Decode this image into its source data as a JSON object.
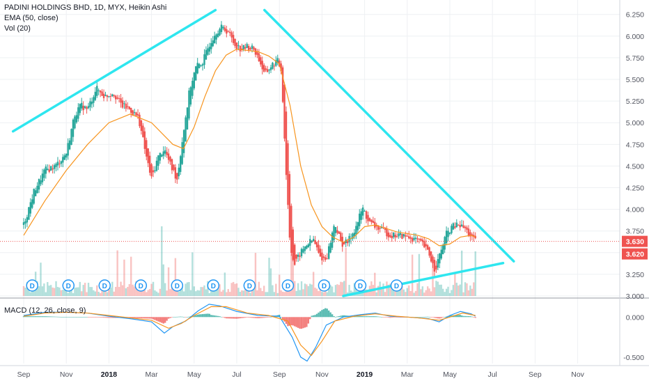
{
  "legend": {
    "title": "PADINI HOLDINGS BHD, 1D, MYX, Heikin Ashi",
    "ema": "EMA (50, close)",
    "vol": "Vol (20)",
    "macd": "MACD (12, 26, close, 9)"
  },
  "colors": {
    "up": "#26a69a",
    "down": "#ef5350",
    "ema": "#f7941d",
    "trendline": "#2ee6ef",
    "macd_line": "#2196f3",
    "signal_line": "#f7941d",
    "grid": "#eef0f3",
    "axis_text": "#50535e",
    "last_line": "#ef5350",
    "badge_ring": "#2196f3"
  },
  "chart_data": [
    {
      "type": "candlestick",
      "style": "Heikin Ashi",
      "x_tick_labels": [
        "Sep",
        "Nov",
        "2018",
        "Mar",
        "May",
        "Jul",
        "Sep",
        "Nov",
        "2019",
        "Mar",
        "May",
        "Jul",
        "Sep",
        "Nov"
      ],
      "y_tick_labels": [
        "6.250",
        "6.000",
        "5.750",
        "5.500",
        "5.250",
        "5.000",
        "4.750",
        "4.500",
        "4.250",
        "4.000",
        "3.750",
        "3.500",
        "3.250",
        "3.000"
      ],
      "ylim": [
        3.0,
        6.28
      ],
      "grid": true,
      "price_labels": [
        "3.630",
        "3.620"
      ],
      "last_price": 3.63,
      "dividend_badge": "D",
      "dividends_month_index": [
        0.4,
        2.1,
        3.8,
        5.5,
        7.2,
        8.9,
        10.6,
        12.4,
        14.1,
        15.8,
        17.5
      ],
      "close_series": [
        [
          0.0,
          3.82
        ],
        [
          0.5,
          4.22
        ],
        [
          1.0,
          4.45
        ],
        [
          1.5,
          4.5
        ],
        [
          2.0,
          4.65
        ],
        [
          2.4,
          5.1
        ],
        [
          2.7,
          5.2
        ],
        [
          3.0,
          5.15
        ],
        [
          3.4,
          5.4
        ],
        [
          3.8,
          5.3
        ],
        [
          4.2,
          5.35
        ],
        [
          4.6,
          5.2
        ],
        [
          5.0,
          5.15
        ],
        [
          5.4,
          5.05
        ],
        [
          5.8,
          4.55
        ],
        [
          6.0,
          4.35
        ],
        [
          6.3,
          4.6
        ],
        [
          6.6,
          4.7
        ],
        [
          6.9,
          4.5
        ],
        [
          7.2,
          4.35
        ],
        [
          7.5,
          4.9
        ],
        [
          7.8,
          5.4
        ],
        [
          8.1,
          5.65
        ],
        [
          8.4,
          5.7
        ],
        [
          8.7,
          5.9
        ],
        [
          9.0,
          6.05
        ],
        [
          9.3,
          6.1
        ],
        [
          9.6,
          6.05
        ],
        [
          9.9,
          5.9
        ],
        [
          10.2,
          5.85
        ],
        [
          10.5,
          5.88
        ],
        [
          10.8,
          5.85
        ],
        [
          11.1,
          5.7
        ],
        [
          11.3,
          5.55
        ],
        [
          11.6,
          5.65
        ],
        [
          11.9,
          5.72
        ],
        [
          12.1,
          5.6
        ],
        [
          12.3,
          4.5
        ],
        [
          12.5,
          3.6
        ],
        [
          12.7,
          3.35
        ],
        [
          13.0,
          3.5
        ],
        [
          13.3,
          3.6
        ],
        [
          13.6,
          3.65
        ],
        [
          13.9,
          3.45
        ],
        [
          14.2,
          3.42
        ],
        [
          14.6,
          3.85
        ],
        [
          14.9,
          3.6
        ],
        [
          15.2,
          3.62
        ],
        [
          15.6,
          3.8
        ],
        [
          15.9,
          4.02
        ],
        [
          16.2,
          3.85
        ],
        [
          16.5,
          3.8
        ],
        [
          16.9,
          3.75
        ],
        [
          17.2,
          3.7
        ],
        [
          17.6,
          3.7
        ],
        [
          18.0,
          3.68
        ],
        [
          18.4,
          3.65
        ],
        [
          18.7,
          3.6
        ],
        [
          19.0,
          3.5
        ],
        [
          19.3,
          3.3
        ],
        [
          19.5,
          3.45
        ],
        [
          19.8,
          3.7
        ],
        [
          20.1,
          3.8
        ],
        [
          20.4,
          3.82
        ],
        [
          20.7,
          3.78
        ],
        [
          21.0,
          3.68
        ],
        [
          21.2,
          3.63
        ]
      ],
      "ema_series": [
        [
          0.0,
          3.7
        ],
        [
          1.0,
          4.1
        ],
        [
          2.0,
          4.45
        ],
        [
          3.0,
          4.75
        ],
        [
          4.0,
          5.0
        ],
        [
          5.0,
          5.1
        ],
        [
          6.0,
          5.0
        ],
        [
          7.0,
          4.75
        ],
        [
          7.5,
          4.7
        ],
        [
          8.0,
          4.95
        ],
        [
          8.5,
          5.3
        ],
        [
          9.0,
          5.6
        ],
        [
          9.5,
          5.78
        ],
        [
          10.0,
          5.85
        ],
        [
          11.0,
          5.82
        ],
        [
          11.5,
          5.77
        ],
        [
          12.0,
          5.68
        ],
        [
          12.5,
          5.2
        ],
        [
          13.0,
          4.5
        ],
        [
          13.5,
          4.05
        ],
        [
          14.0,
          3.8
        ],
        [
          14.5,
          3.68
        ],
        [
          15.0,
          3.62
        ],
        [
          15.5,
          3.68
        ],
        [
          16.0,
          3.8
        ],
        [
          16.5,
          3.82
        ],
        [
          17.0,
          3.78
        ],
        [
          17.5,
          3.74
        ],
        [
          18.0,
          3.72
        ],
        [
          18.5,
          3.7
        ],
        [
          19.0,
          3.66
        ],
        [
          19.5,
          3.58
        ],
        [
          20.0,
          3.6
        ],
        [
          20.5,
          3.68
        ],
        [
          21.0,
          3.7
        ],
        [
          21.2,
          3.68
        ]
      ],
      "trendlines": [
        {
          "from": [
            -0.5,
            4.9
          ],
          "to": [
            9.0,
            6.3
          ]
        },
        {
          "from": [
            11.3,
            6.3
          ],
          "to": [
            23.0,
            3.4
          ]
        },
        {
          "from": [
            15.0,
            3.0
          ],
          "to": [
            22.5,
            3.38
          ]
        }
      ]
    },
    {
      "type": "line",
      "label": "MACD (12, 26, close, 9)",
      "y_tick_labels": [
        "0.000",
        "-0.500"
      ],
      "ylim": [
        -0.58,
        0.22
      ],
      "macd": [
        [
          0.0,
          0.02
        ],
        [
          1.0,
          0.06
        ],
        [
          2.0,
          0.06
        ],
        [
          3.0,
          0.05
        ],
        [
          4.0,
          0.01
        ],
        [
          5.0,
          -0.02
        ],
        [
          6.0,
          -0.06
        ],
        [
          6.6,
          -0.2
        ],
        [
          7.0,
          -0.12
        ],
        [
          7.6,
          -0.05
        ],
        [
          8.2,
          0.08
        ],
        [
          8.7,
          0.16
        ],
        [
          9.2,
          0.14
        ],
        [
          10.0,
          0.07
        ],
        [
          11.0,
          0.02
        ],
        [
          12.0,
          0.01
        ],
        [
          12.6,
          -0.25
        ],
        [
          13.0,
          -0.5
        ],
        [
          13.3,
          -0.55
        ],
        [
          13.7,
          -0.38
        ],
        [
          14.2,
          -0.1
        ],
        [
          15.0,
          0.0
        ],
        [
          15.8,
          0.03
        ],
        [
          16.5,
          0.05
        ],
        [
          17.2,
          0.01
        ],
        [
          18.0,
          0.0
        ],
        [
          19.0,
          -0.02
        ],
        [
          19.5,
          -0.06
        ],
        [
          20.0,
          0.02
        ],
        [
          20.5,
          0.07
        ],
        [
          21.0,
          0.04
        ],
        [
          21.2,
          0.01
        ]
      ],
      "signal": [
        [
          0.0,
          0.01
        ],
        [
          1.0,
          0.05
        ],
        [
          2.0,
          0.06
        ],
        [
          3.0,
          0.05
        ],
        [
          4.0,
          0.02
        ],
        [
          5.0,
          -0.01
        ],
        [
          6.0,
          -0.04
        ],
        [
          6.8,
          -0.14
        ],
        [
          7.4,
          -0.08
        ],
        [
          8.0,
          0.02
        ],
        [
          8.8,
          0.13
        ],
        [
          9.5,
          0.13
        ],
        [
          10.5,
          0.05
        ],
        [
          11.5,
          0.02
        ],
        [
          12.4,
          -0.05
        ],
        [
          13.0,
          -0.35
        ],
        [
          13.5,
          -0.48
        ],
        [
          14.0,
          -0.3
        ],
        [
          14.6,
          -0.05
        ],
        [
          15.5,
          0.01
        ],
        [
          16.5,
          0.04
        ],
        [
          17.5,
          0.01
        ],
        [
          18.5,
          -0.01
        ],
        [
          19.5,
          -0.04
        ],
        [
          20.0,
          0.0
        ],
        [
          20.6,
          0.05
        ],
        [
          21.2,
          0.02
        ]
      ]
    }
  ]
}
